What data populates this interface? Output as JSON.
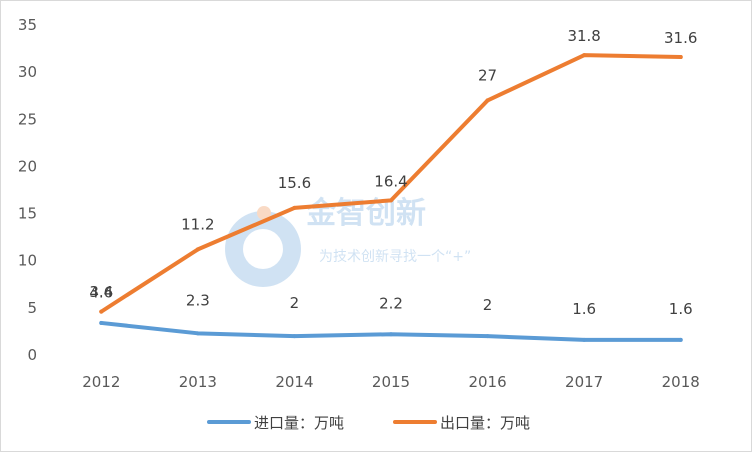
{
  "chart_data": {
    "type": "line",
    "title": "",
    "xlabel": "",
    "ylabel": "",
    "categories": [
      "2012",
      "2013",
      "2014",
      "2015",
      "2016",
      "2017",
      "2018"
    ],
    "ylim": [
      0,
      35
    ],
    "yticks": [
      0,
      5,
      10,
      15,
      20,
      25,
      30,
      35
    ],
    "grid": false,
    "legend_position": "bottom",
    "series": [
      {
        "name": "进口量：万吨",
        "color": "#5b9bd5",
        "values": [
          3.4,
          2.3,
          2,
          2.2,
          2,
          1.6,
          1.6
        ],
        "labels": [
          "3.4",
          "2.3",
          "2",
          "2.2",
          "2",
          "1.6",
          "1.6"
        ]
      },
      {
        "name": "出口量：万吨",
        "color": "#ed7d31",
        "values": [
          4.6,
          11.2,
          15.6,
          16.4,
          27,
          31.8,
          31.6
        ],
        "labels": [
          "4.6",
          "11.2",
          "15.6",
          "16.4",
          "27",
          "31.8",
          "31.6"
        ]
      }
    ]
  },
  "watermark": {
    "title": "金智创新",
    "subtitle": "为技术创新寻找一个“+”"
  }
}
